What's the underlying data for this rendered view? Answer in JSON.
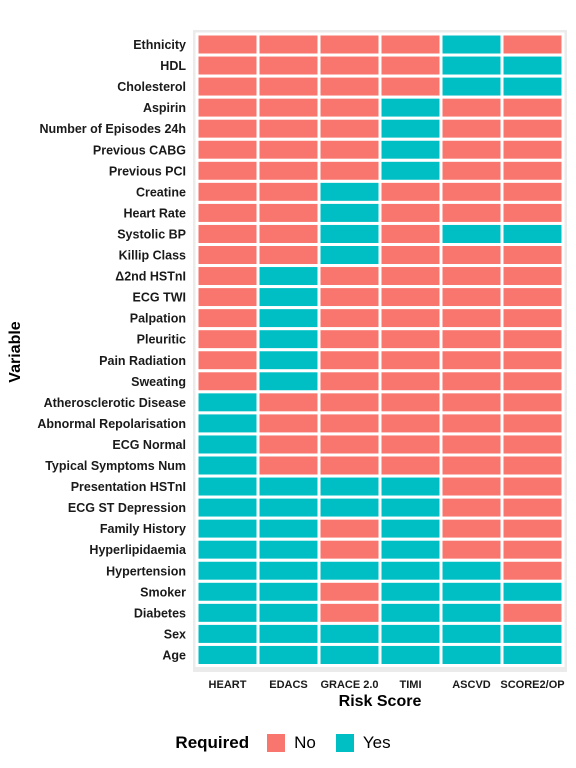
{
  "chart_data": {
    "type": "heatmap",
    "xlabel": "Risk Score",
    "ylabel": "Variable",
    "x": [
      "HEART",
      "EDACS",
      "GRACE 2.0",
      "TIMI",
      "ASCVD",
      "SCORE2/OP"
    ],
    "y": [
      "Ethnicity",
      "HDL",
      "Cholesterol",
      "Aspirin",
      "Number of Episodes 24h",
      "Previous CABG",
      "Previous PCI",
      "Creatine",
      "Heart Rate",
      "Systolic BP",
      "Killip Class",
      "Δ2nd HSTnI",
      "ECG TWI",
      "Palpation",
      "Pleuritic",
      "Pain Radiation",
      "Sweating",
      "Atherosclerotic Disease",
      "Abnormal Repolarisation",
      "ECG Normal",
      "Typical Symptoms Num",
      "Presentation HSTnI",
      "ECG ST Depression",
      "Family History",
      "Hyperlipidaemia",
      "Hypertension",
      "Smoker",
      "Diabetes",
      "Sex",
      "Age"
    ],
    "values": [
      [
        "No",
        "No",
        "No",
        "No",
        "Yes",
        "No"
      ],
      [
        "No",
        "No",
        "No",
        "No",
        "Yes",
        "Yes"
      ],
      [
        "No",
        "No",
        "No",
        "No",
        "Yes",
        "Yes"
      ],
      [
        "No",
        "No",
        "No",
        "Yes",
        "No",
        "No"
      ],
      [
        "No",
        "No",
        "No",
        "Yes",
        "No",
        "No"
      ],
      [
        "No",
        "No",
        "No",
        "Yes",
        "No",
        "No"
      ],
      [
        "No",
        "No",
        "No",
        "Yes",
        "No",
        "No"
      ],
      [
        "No",
        "No",
        "Yes",
        "No",
        "No",
        "No"
      ],
      [
        "No",
        "No",
        "Yes",
        "No",
        "No",
        "No"
      ],
      [
        "No",
        "No",
        "Yes",
        "No",
        "Yes",
        "Yes"
      ],
      [
        "No",
        "No",
        "Yes",
        "No",
        "No",
        "No"
      ],
      [
        "No",
        "Yes",
        "No",
        "No",
        "No",
        "No"
      ],
      [
        "No",
        "Yes",
        "No",
        "No",
        "No",
        "No"
      ],
      [
        "No",
        "Yes",
        "No",
        "No",
        "No",
        "No"
      ],
      [
        "No",
        "Yes",
        "No",
        "No",
        "No",
        "No"
      ],
      [
        "No",
        "Yes",
        "No",
        "No",
        "No",
        "No"
      ],
      [
        "No",
        "Yes",
        "No",
        "No",
        "No",
        "No"
      ],
      [
        "Yes",
        "No",
        "No",
        "No",
        "No",
        "No"
      ],
      [
        "Yes",
        "No",
        "No",
        "No",
        "No",
        "No"
      ],
      [
        "Yes",
        "No",
        "No",
        "No",
        "No",
        "No"
      ],
      [
        "Yes",
        "No",
        "No",
        "No",
        "No",
        "No"
      ],
      [
        "Yes",
        "Yes",
        "Yes",
        "Yes",
        "No",
        "No"
      ],
      [
        "Yes",
        "Yes",
        "Yes",
        "Yes",
        "No",
        "No"
      ],
      [
        "Yes",
        "Yes",
        "No",
        "Yes",
        "No",
        "No"
      ],
      [
        "Yes",
        "Yes",
        "No",
        "Yes",
        "No",
        "No"
      ],
      [
        "Yes",
        "Yes",
        "Yes",
        "Yes",
        "Yes",
        "No"
      ],
      [
        "Yes",
        "Yes",
        "No",
        "Yes",
        "Yes",
        "Yes"
      ],
      [
        "Yes",
        "Yes",
        "No",
        "Yes",
        "Yes",
        "No"
      ],
      [
        "Yes",
        "Yes",
        "Yes",
        "Yes",
        "Yes",
        "Yes"
      ],
      [
        "Yes",
        "Yes",
        "Yes",
        "Yes",
        "Yes",
        "Yes"
      ]
    ],
    "legend": {
      "title": "Required",
      "position": "bottom",
      "items": [
        {
          "label": "No",
          "color": "#F8766D"
        },
        {
          "label": "Yes",
          "color": "#00BFC4"
        }
      ]
    },
    "colors": {
      "No": "#F8766D",
      "Yes": "#00BFC4",
      "tile_border": "#ffffff",
      "panel_bg": "#EBEBEB"
    },
    "grid": false
  }
}
